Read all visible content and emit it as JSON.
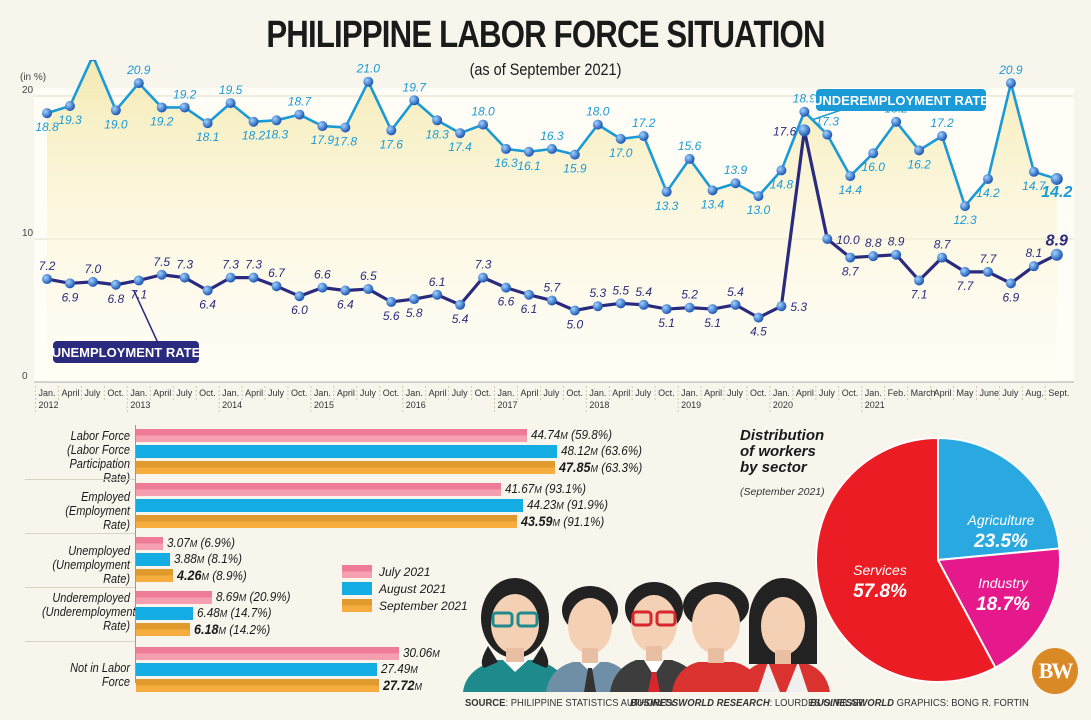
{
  "header": {
    "title": "PHILIPPINE LABOR FORCE SITUATION",
    "subtitle": "(as of September 2021)"
  },
  "line_chart": {
    "unit_label": "(in %)",
    "y_ticks": [
      "20",
      "10",
      "0"
    ],
    "underemployment_label": "UNDEREMPLOYMENT RATE",
    "unemployment_label": "UNEMPLOYMENT RATE",
    "colors": {
      "underemployment": "#1a9ad6",
      "unemployment": "#2a2a7e",
      "fill": "#f6edb8"
    }
  },
  "bars": {
    "categories": [
      {
        "label_lines": [
          "Labor Force",
          "(Labor Force",
          "Participation Rate)"
        ]
      },
      {
        "label_lines": [
          "Employed",
          "(Employment Rate)"
        ]
      },
      {
        "label_lines": [
          "Unemployed",
          "(Unemployment Rate)"
        ]
      },
      {
        "label_lines": [
          "Underemployed",
          "(Underemployment",
          "Rate)"
        ]
      },
      {
        "label_lines": [
          "Not in Labor Force"
        ]
      }
    ],
    "legend": [
      "July 2021",
      "August 2021",
      "September 2021"
    ],
    "colors": {
      "july": "#ee7c96",
      "august": "#13ade3",
      "september": "#f3a63a"
    }
  },
  "pie": {
    "title_lines": [
      "Distribution",
      "of workers",
      "by sector"
    ],
    "subtitle": "(September 2021)",
    "slices": [
      {
        "name": "Agriculture",
        "pct": "23.5%",
        "color": "#29a9e0"
      },
      {
        "name": "Industry",
        "pct": "18.7%",
        "color": "#e5198b"
      },
      {
        "name": "Services",
        "pct": "57.8%",
        "color": "#ec1c24"
      }
    ]
  },
  "footer": {
    "source_label": "SOURCE",
    "source": ": PHILIPPINE STATISTICS AUTHORITY",
    "research_label": "BUSINESSWORLD RESEARCH",
    "research": ": LOURDES O. PILAR",
    "graphics_brand": "BUSINESSWORLD",
    "graphics_label": " GRAPHICS",
    "graphics": ": BONG R. FORTIN",
    "logo": "BW"
  },
  "chart_data": [
    {
      "type": "line",
      "title": "Philippine Labor Force Situation (as of September 2021)",
      "ylabel": "(in %)",
      "ylim": [
        0,
        23
      ],
      "y_ticks": [
        0,
        10,
        20
      ],
      "grid": true,
      "x": [
        "Jan. 2012",
        "April",
        "July",
        "Oct.",
        "Jan. 2013",
        "April",
        "July",
        "Oct.",
        "Jan. 2014",
        "April",
        "July",
        "Oct.",
        "Jan. 2015",
        "April",
        "July",
        "Oct.",
        "Jan. 2016",
        "April",
        "July",
        "Oct.",
        "Jan. 2017",
        "April",
        "July",
        "Oct.",
        "Jan. 2018",
        "April",
        "July",
        "Oct.",
        "Jan. 2019",
        "April",
        "July",
        "Oct.",
        "Jan. 2020",
        "April",
        "July",
        "Oct.",
        "Jan. 2021",
        "Feb.",
        "March",
        "April",
        "May",
        "June",
        "July",
        "Aug.",
        "Sept."
      ],
      "series": [
        {
          "name": "Underemployment Rate",
          "values": [
            18.8,
            19.3,
            22.8,
            19.0,
            20.9,
            19.2,
            19.2,
            18.1,
            19.5,
            18.2,
            18.3,
            18.7,
            17.9,
            17.8,
            21.0,
            17.6,
            19.7,
            18.3,
            17.4,
            18.0,
            16.3,
            16.1,
            16.3,
            15.9,
            18.0,
            17.0,
            17.2,
            13.3,
            15.6,
            13.4,
            13.9,
            13.0,
            14.8,
            18.9,
            17.3,
            14.4,
            16.0,
            18.2,
            16.2,
            17.2,
            12.3,
            14.2,
            20.9,
            14.7,
            14.2
          ]
        },
        {
          "name": "Unemployment Rate",
          "values": [
            7.2,
            6.9,
            7.0,
            6.8,
            7.1,
            7.5,
            7.3,
            6.4,
            7.3,
            7.3,
            6.7,
            6.0,
            6.6,
            6.4,
            6.5,
            5.6,
            5.8,
            6.1,
            5.4,
            7.3,
            6.6,
            6.1,
            5.7,
            5.0,
            5.3,
            5.5,
            5.4,
            5.1,
            5.2,
            5.1,
            5.4,
            4.5,
            5.3,
            17.6,
            10.0,
            8.7,
            8.8,
            8.9,
            7.1,
            8.7,
            7.7,
            7.7,
            6.9,
            8.1,
            8.9
          ]
        }
      ]
    },
    {
      "type": "bar",
      "orientation": "horizontal",
      "categories": [
        "Labor Force (Labor Force Participation Rate)",
        "Employed (Employment Rate)",
        "Unemployed (Unemployment Rate)",
        "Underemployed (Underemployment Rate)",
        "Not in Labor Force"
      ],
      "unit": "million",
      "series": [
        {
          "name": "July 2021",
          "values": [
            44.74,
            41.67,
            3.07,
            8.69,
            30.06
          ],
          "labels": [
            "44.74M (59.8%)",
            "41.67M (93.1%)",
            "3.07M (6.9%)",
            "8.69M (20.9%)",
            "30.06M"
          ]
        },
        {
          "name": "August 2021",
          "values": [
            48.12,
            44.23,
            3.88,
            6.48,
            27.49
          ],
          "labels": [
            "48.12M (63.6%)",
            "44.23M (91.9%)",
            "3.88M (8.1%)",
            "6.48M (14.7%)",
            "27.49M"
          ]
        },
        {
          "name": "September 2021",
          "values": [
            47.85,
            43.59,
            4.26,
            6.18,
            27.72
          ],
          "labels": [
            "47.85M (63.3%)",
            "43.59M (91.1%)",
            "4.26M (8.9%)",
            "6.18M (14.2%)",
            "27.72M"
          ]
        }
      ],
      "legend_position": "right"
    },
    {
      "type": "pie",
      "title": "Distribution of workers by sector (September 2021)",
      "categories": [
        "Agriculture",
        "Industry",
        "Services"
      ],
      "values": [
        23.5,
        18.7,
        57.8
      ]
    }
  ]
}
